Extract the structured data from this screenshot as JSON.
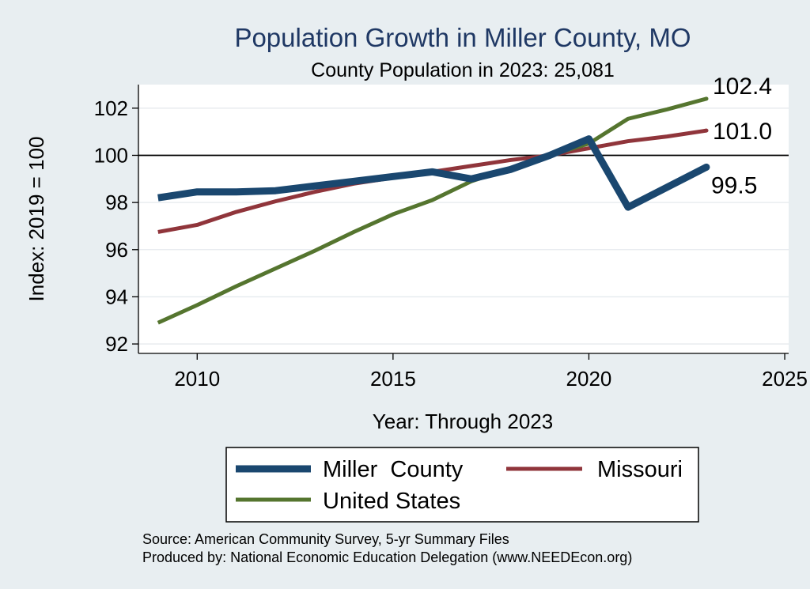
{
  "chart_data": {
    "type": "line",
    "title": "Population Growth in Miller County, MO",
    "subtitle": "County Population in 2023: 25,081",
    "xlabel": "Year: Through 2023",
    "ylabel": "Index: 2019 = 100",
    "xlim": [
      2009,
      2025
    ],
    "ylim": [
      92,
      103
    ],
    "x_ticks": [
      "2010",
      "2015",
      "2020",
      "2025"
    ],
    "y_ticks": [
      "92",
      "94",
      "96",
      "98",
      "100",
      "102"
    ],
    "reference_line": 100,
    "grid": true,
    "legend_position": "bottom",
    "x": [
      2009,
      2010,
      2011,
      2012,
      2013,
      2014,
      2015,
      2016,
      2017,
      2018,
      2019,
      2020,
      2021,
      2022,
      2023
    ],
    "series": [
      {
        "name": "Miller  County",
        "color": "#1a476f",
        "values": [
          98.2,
          98.45,
          98.45,
          98.5,
          98.7,
          98.9,
          99.1,
          99.3,
          99.0,
          99.4,
          100.0,
          100.7,
          97.8,
          98.65,
          99.5
        ],
        "end_label": "99.5"
      },
      {
        "name": "Missouri",
        "color": "#90353b",
        "values": [
          96.75,
          97.05,
          97.6,
          98.05,
          98.45,
          98.8,
          99.05,
          99.3,
          99.55,
          99.8,
          100.0,
          100.3,
          100.6,
          100.8,
          101.05
        ],
        "end_label": "101.0"
      },
      {
        "name": "United States",
        "color": "#55752f",
        "values": [
          92.9,
          93.65,
          94.45,
          95.2,
          95.95,
          96.75,
          97.5,
          98.1,
          98.9,
          99.45,
          100.0,
          100.5,
          101.55,
          101.95,
          102.4
        ],
        "end_label": "102.4"
      }
    ]
  },
  "notes": {
    "source": "Source: American Community Survey, 5-yr Summary Files",
    "produced": "Produced by: National Economic Education Delegation (www.NEEDEcon.org)"
  }
}
